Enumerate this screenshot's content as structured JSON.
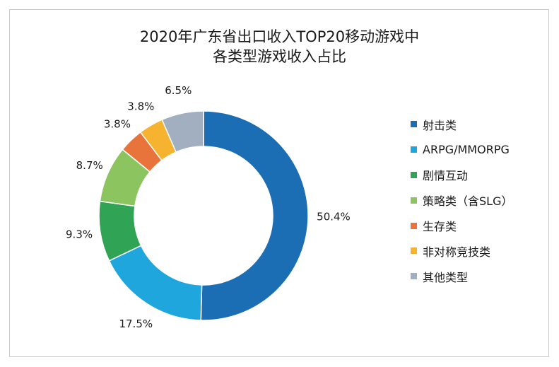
{
  "chart_data": {
    "type": "pie",
    "donut": true,
    "title_lines": [
      "2020年广东省出口收入TOP20移动游戏中",
      "各类型游戏收入占比"
    ],
    "categories": [
      "射击类",
      "ARPG/MMORPG",
      "剧情互动",
      "策略类（含SLG）",
      "生存类",
      "非对称竞技类",
      "其他类型"
    ],
    "values": [
      50.4,
      17.5,
      9.3,
      8.7,
      3.8,
      3.8,
      6.5
    ],
    "value_labels": [
      "50.4%",
      "17.5%",
      "9.3%",
      "8.7%",
      "3.8%",
      "3.8%",
      "6.5%"
    ],
    "colors": [
      "#1b6db4",
      "#1ea6dd",
      "#31a354",
      "#8cc460",
      "#e8743b",
      "#f5b32f",
      "#a1afc0"
    ],
    "legend_position": "right"
  }
}
